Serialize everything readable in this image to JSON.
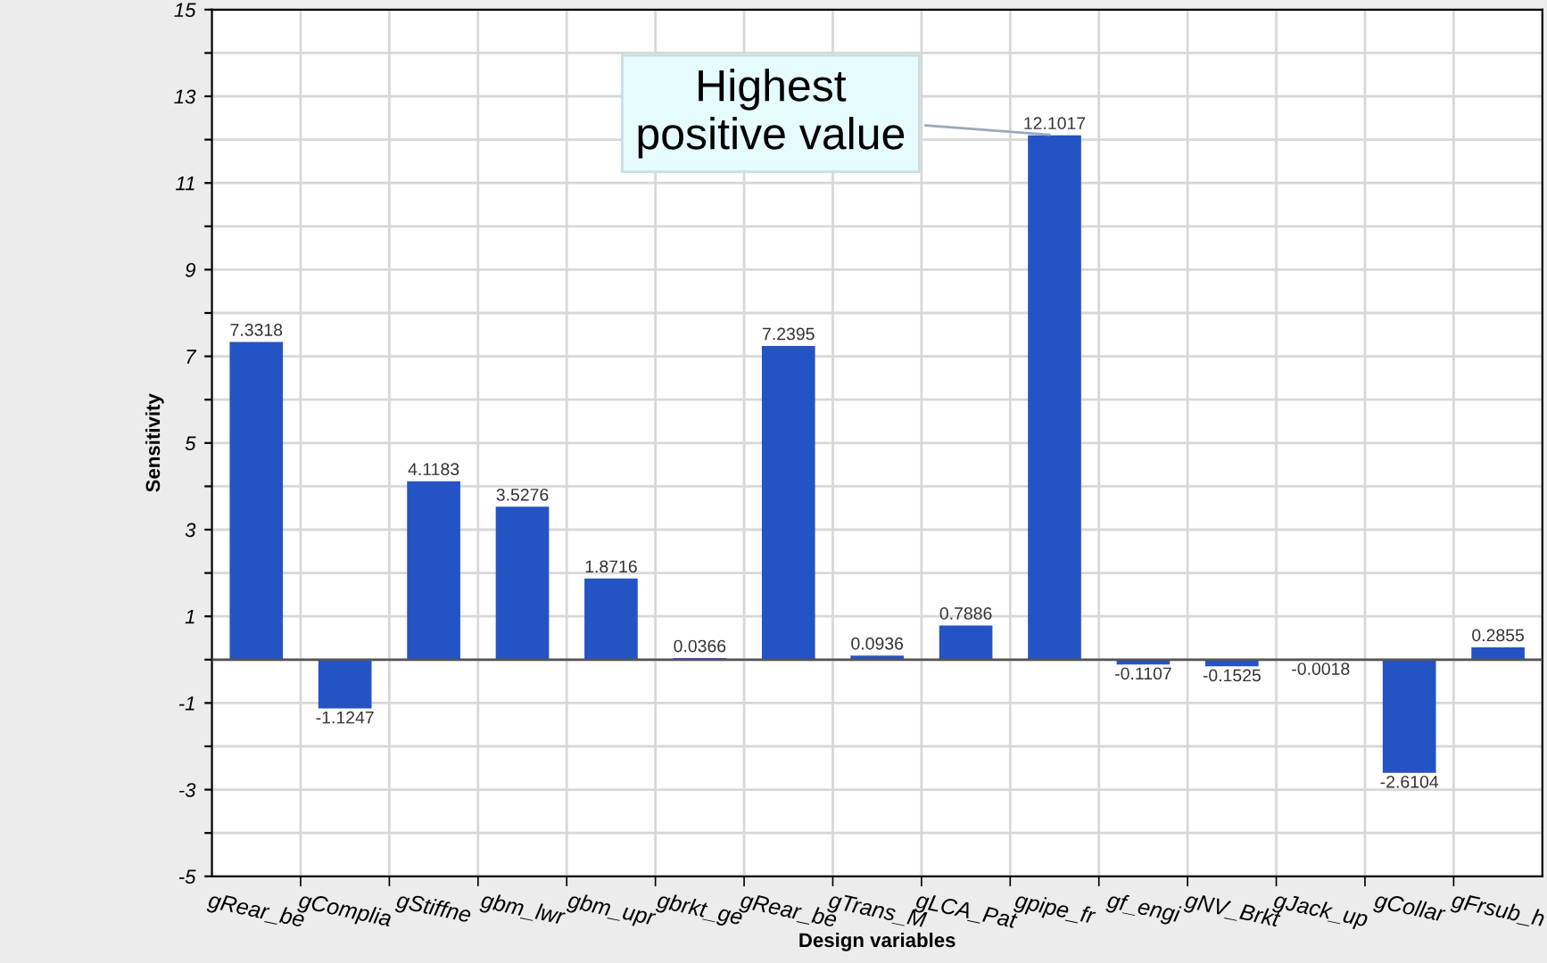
{
  "chart_data": {
    "type": "bar",
    "xlabel": "Design variables",
    "ylabel": "Sensitivity",
    "categories": [
      "gRear_be",
      "gComplia",
      "gStiffne",
      "gbm_lwr",
      "gbm_upr",
      "gbrkt_ge",
      "gRear_be",
      "gTrans_M",
      "gLCA_Pat",
      "gpipe_fr",
      "gf_engi",
      "gNV_Brkt",
      "gJack_up",
      "gCollar",
      "gFrsub_h"
    ],
    "values": [
      7.3318,
      -1.1247,
      4.1183,
      3.5276,
      1.8716,
      0.0366,
      7.2395,
      0.0936,
      0.7886,
      12.1017,
      -0.1107,
      -0.1525,
      -0.0018,
      -2.6104,
      0.2855
    ],
    "color": "#2453c4",
    "data_labels": true,
    "ylim": [
      -5,
      15
    ],
    "yticks": [
      -5,
      {
        "value": -4,
        "label": null
      },
      -3,
      {
        "value": -2,
        "label": null
      },
      -1,
      {
        "value": 0,
        "label": null
      },
      1,
      {
        "value": 2,
        "label": null
      },
      3,
      {
        "value": 4,
        "label": null
      },
      5,
      {
        "value": 6,
        "label": null
      },
      7,
      {
        "value": 8,
        "label": null
      },
      9,
      {
        "value": 10,
        "label": null
      },
      11,
      {
        "value": 12,
        "label": null
      },
      13,
      {
        "value": 14,
        "label": null
      },
      15
    ],
    "grid": true,
    "annotations": [
      {
        "text": "Highest\npositive value",
        "x": "gpipe_fr",
        "y": 12.1017
      }
    ]
  }
}
